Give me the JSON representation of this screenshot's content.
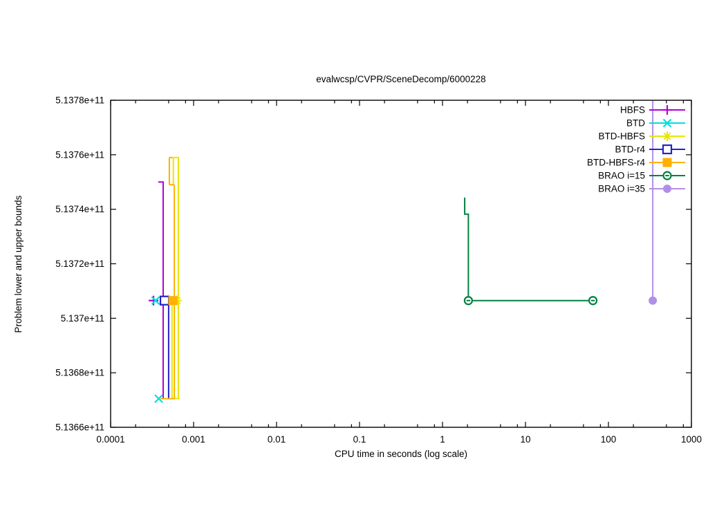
{
  "chart_data": {
    "type": "line",
    "title": "evalwcsp/CVPR/SceneDecomp/6000228",
    "xlabel": "CPU time in seconds (log scale)",
    "ylabel": "Problem lower and upper bounds",
    "x_scale": "log",
    "grid": false,
    "legend_position": "top-right-inside",
    "xlim": [
      0.0001,
      1000
    ],
    "ylim": [
      513660000000,
      513780000000
    ],
    "x_ticks": [
      {
        "v": 0.0001,
        "label": "0.0001"
      },
      {
        "v": 0.001,
        "label": "0.001"
      },
      {
        "v": 0.01,
        "label": "0.01"
      },
      {
        "v": 0.1,
        "label": "0.1"
      },
      {
        "v": 1,
        "label": "1"
      },
      {
        "v": 10,
        "label": "10"
      },
      {
        "v": 100,
        "label": "100"
      },
      {
        "v": 1000,
        "label": "1000"
      }
    ],
    "x_minor_multiples": [
      2,
      5,
      8
    ],
    "y_ticks": [
      {
        "v": 513660000000,
        "label": "5.1366e+11"
      },
      {
        "v": 513680000000,
        "label": "5.1368e+11"
      },
      {
        "v": 513700000000,
        "label": "5.137e+11"
      },
      {
        "v": 513720000000,
        "label": "5.1372e+11"
      },
      {
        "v": 513740000000,
        "label": "5.1374e+11"
      },
      {
        "v": 513760000000,
        "label": "5.1376e+11"
      },
      {
        "v": 513780000000,
        "label": "5.1378e+11"
      }
    ],
    "series": [
      {
        "name": "HBFS",
        "color": "#b300d6",
        "marker": "plus",
        "lines": [
          [
            [
              0.000375,
              513750000000
            ],
            [
              0.00043,
              513750000000
            ],
            [
              0.00043,
              513670500000
            ]
          ]
        ],
        "points": [
          [
            0.000329,
            513706500000
          ]
        ]
      },
      {
        "name": "BTD",
        "color": "#00dede",
        "marker": "cross",
        "lines": [],
        "points": [
          [
            0.000348,
            513706500000
          ],
          [
            0.00038,
            513670500000
          ]
        ]
      },
      {
        "name": "BTD-HBFS",
        "color": "#e6e600",
        "marker": "asterisk",
        "lines": [
          [
            [
              0.00057,
              513759000000
            ],
            [
              0.000655,
              513759000000
            ],
            [
              0.000655,
              513670500000
            ]
          ],
          [
            [
              0.00057,
              513759000000
            ],
            [
              0.00057,
              513749000000
            ]
          ],
          [
            [
              0.00055,
              513706500000
            ],
            [
              0.00055,
              513670500000
            ]
          ],
          [
            [
              0.00055,
              513670500000
            ],
            [
              0.00068,
              513670500000
            ]
          ]
        ],
        "points": [
          [
            0.000631,
            513706500000
          ]
        ]
      },
      {
        "name": "BTD-r4",
        "color": "#2222cc",
        "marker": "square-open",
        "lines": [
          [
            [
              0.0005,
              513706500000
            ],
            [
              0.0005,
              513670500000
            ]
          ]
        ],
        "points": [
          [
            0.000447,
            513706500000
          ]
        ]
      },
      {
        "name": "BTD-HBFS-r4",
        "color": "#ffb000",
        "marker": "square-filled",
        "lines": [
          [
            [
              0.00051,
              513759000000
            ],
            [
              0.00056,
              513759000000
            ]
          ],
          [
            [
              0.00051,
              513759000000
            ],
            [
              0.00051,
              513749000000
            ]
          ],
          [
            [
              0.00051,
              513749000000
            ],
            [
              0.000585,
              513749000000
            ]
          ],
          [
            [
              0.000585,
              513749000000
            ],
            [
              0.000585,
              513670500000
            ]
          ],
          [
            [
              0.0004,
              513670500000
            ],
            [
              0.000585,
              513670500000
            ]
          ]
        ],
        "points": [
          [
            0.000562,
            513706500000
          ]
        ]
      },
      {
        "name": "BRAO i=15",
        "color": "#008040",
        "marker": "circle-dash",
        "lines": [
          [
            [
              1.85,
              513744300000
            ],
            [
              1.85,
              513738200000
            ],
            [
              2.05,
              513738200000
            ],
            [
              2.05,
              513706500000
            ],
            [
              65,
              513706500000
            ]
          ]
        ],
        "points": [
          [
            2.05,
            513706500000
          ],
          [
            65,
            513706500000
          ]
        ]
      },
      {
        "name": "BRAO i=35",
        "color": "#b18fe8",
        "marker": "circle-filled",
        "lines": [
          [
            [
              342,
              513780000000
            ],
            [
              342,
              513706500000
            ]
          ]
        ],
        "points": [
          [
            342,
            513706500000
          ]
        ]
      }
    ]
  }
}
